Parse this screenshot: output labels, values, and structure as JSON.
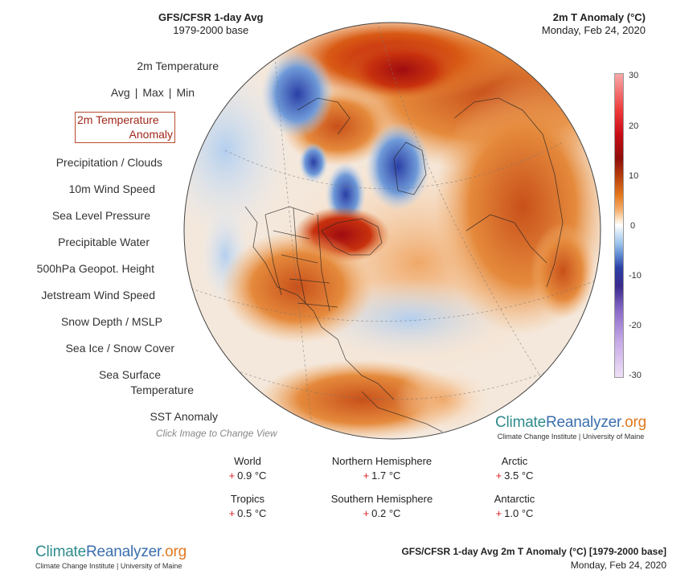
{
  "header": {
    "left_title": "GFS/CFSR 1-day Avg",
    "left_subtitle": "1979-2000 base",
    "right_title": "2m T Anomaly (°C)",
    "right_subtitle": "Monday, Feb 24, 2020"
  },
  "menu": {
    "temperature": "2m Temperature",
    "avg": "Avg",
    "max": "Max",
    "min": "Min",
    "separator": "|",
    "anomaly_line1": "2m Temperature",
    "anomaly_line2": "Anomaly",
    "precip": "Precipitation / Clouds",
    "wind": "10m Wind Speed",
    "slp": "Sea Level Pressure",
    "pwat": "Precipitable Water",
    "geopot": "500hPa Geopot. Height",
    "jetstream": "Jetstream Wind Speed",
    "snow": "Snow Depth / MSLP",
    "seaice": "Sea Ice / Snow Cover",
    "sst_line1": "Sea Surface",
    "sst_line2": "Temperature",
    "sst_anomaly": "SST Anomaly",
    "hint": "Click Image to Change View"
  },
  "colorbar": {
    "labels": [
      "30",
      "20",
      "10",
      "0",
      "-10",
      "-20",
      "-30"
    ]
  },
  "brand": {
    "part1": "Climate",
    "part2": "Reanalyzer",
    "part3": ".org",
    "subtitle": "Climate Change Institute | University of Maine"
  },
  "stats": {
    "world": {
      "label": "World",
      "sign": "+",
      "value": "0.9 °C"
    },
    "nh": {
      "label": "Northern Hemisphere",
      "sign": "+",
      "value": "1.7 °C"
    },
    "arctic": {
      "label": "Arctic",
      "sign": "+",
      "value": "3.5 °C"
    },
    "tropics": {
      "label": "Tropics",
      "sign": "+",
      "value": "0.5 °C"
    },
    "sh": {
      "label": "Southern Hemisphere",
      "sign": "+",
      "value": "0.2 °C"
    },
    "antarctic": {
      "label": "Antarctic",
      "sign": "+",
      "value": "1.0 °C"
    }
  },
  "footer": {
    "title": "GFS/CFSR 1-day Avg 2m T Anomaly (°C) [1979-2000 base]",
    "date": "Monday, Feb 24, 2020"
  }
}
